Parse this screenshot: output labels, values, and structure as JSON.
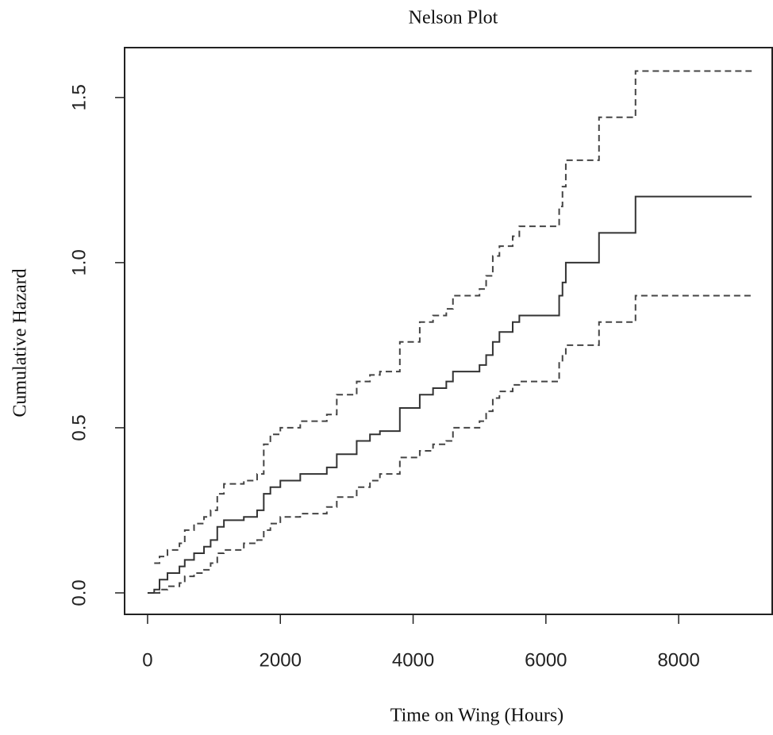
{
  "chart_data": {
    "type": "step",
    "title": "Nelson Plot",
    "x_label": "Time on Wing (Hours)",
    "y_label": "Cumulative  Hazard",
    "x": [
      0,
      100,
      180,
      300,
      480,
      560,
      700,
      850,
      950,
      1050,
      1150,
      1450,
      1650,
      1750,
      1850,
      2000,
      2300,
      2700,
      2850,
      3150,
      3350,
      3500,
      3800,
      4100,
      4300,
      4500,
      4600,
      5000,
      5100,
      5200,
      5300,
      5500,
      5600,
      6200,
      6250,
      6300,
      6800,
      7350,
      9100
    ],
    "series": [
      {
        "color": "#333333",
        "dashed": false,
        "values": [
          0,
          0.01,
          0.04,
          0.06,
          0.08,
          0.1,
          0.12,
          0.14,
          0.16,
          0.2,
          0.22,
          0.23,
          0.25,
          0.3,
          0.32,
          0.34,
          0.36,
          0.38,
          0.42,
          0.46,
          0.48,
          0.49,
          0.56,
          0.6,
          0.62,
          0.64,
          0.67,
          0.69,
          0.72,
          0.76,
          0.79,
          0.82,
          0.84,
          0.9,
          0.94,
          1.0,
          1.09,
          1.2,
          1.2
        ]
      },
      {
        "color": "#444444",
        "dashed": true,
        "values": [
          null,
          0.09,
          0.11,
          0.13,
          0.15,
          0.19,
          0.21,
          0.23,
          0.25,
          0.3,
          0.33,
          0.34,
          0.36,
          0.45,
          0.48,
          0.5,
          0.52,
          0.54,
          0.6,
          0.64,
          0.66,
          0.67,
          0.76,
          0.82,
          0.84,
          0.86,
          0.9,
          0.92,
          0.96,
          1.02,
          1.05,
          1.08,
          1.11,
          1.17,
          1.23,
          1.31,
          1.44,
          1.58,
          1.58
        ]
      },
      {
        "color": "#444444",
        "dashed": true,
        "values": [
          null,
          0.0,
          0.01,
          0.02,
          0.03,
          0.05,
          0.06,
          0.07,
          0.09,
          0.12,
          0.13,
          0.15,
          0.16,
          0.19,
          0.21,
          0.23,
          0.24,
          0.26,
          0.29,
          0.32,
          0.34,
          0.36,
          0.41,
          0.43,
          0.45,
          0.46,
          0.5,
          0.52,
          0.55,
          0.59,
          0.61,
          0.63,
          0.64,
          0.7,
          0.72,
          0.75,
          0.82,
          0.9,
          0.9
        ]
      }
    ],
    "xlim": [
      -346,
      9409
    ],
    "ylim": [
      -0.065,
      1.651
    ],
    "xticks": [
      0,
      2000,
      4000,
      6000,
      8000
    ],
    "yticks": [
      {
        "value": 0,
        "label": "0.0"
      },
      {
        "value": 0.5,
        "label": "0.5"
      },
      {
        "value": 1,
        "label": "1.0"
      },
      {
        "value": 1.5,
        "label": "1.5"
      }
    ],
    "grid": false
  }
}
